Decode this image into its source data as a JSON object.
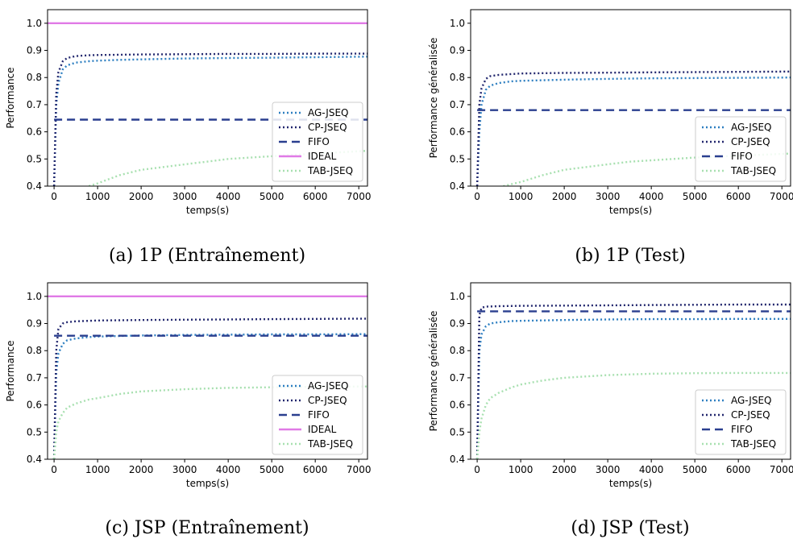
{
  "chart_data": [
    {
      "id": "a",
      "type": "line",
      "caption": "(a) 1P (Entraînement)",
      "xlabel": "temps(s)",
      "ylabel": "Performance",
      "xlim": [
        -150,
        7200
      ],
      "ylim": [
        0.4,
        1.05
      ],
      "xticks": [
        0,
        1000,
        2000,
        3000,
        4000,
        5000,
        6000,
        7000
      ],
      "yticks": [
        0.4,
        0.5,
        0.6,
        0.7,
        0.8,
        0.9,
        1.0
      ],
      "grid": false,
      "legend_position": "bottom-right",
      "series": [
        {
          "name": "AG-JSEQ",
          "color": "#2e7fc1",
          "style": "dotted",
          "x": [
            0,
            50,
            100,
            200,
            300,
            500,
            800,
            1000,
            1500,
            2000,
            3000,
            4000,
            5000,
            6000,
            7200
          ],
          "y": [
            0.4,
            0.7,
            0.78,
            0.83,
            0.845,
            0.855,
            0.86,
            0.862,
            0.865,
            0.867,
            0.87,
            0.872,
            0.873,
            0.875,
            0.877
          ]
        },
        {
          "name": "CP-JSEQ",
          "color": "#22276e",
          "style": "dotted",
          "x": [
            0,
            50,
            100,
            200,
            300,
            500,
            800,
            1000,
            2000,
            3000,
            4000,
            5000,
            6000,
            7200
          ],
          "y": [
            0.4,
            0.74,
            0.82,
            0.86,
            0.872,
            0.879,
            0.882,
            0.883,
            0.885,
            0.886,
            0.887,
            0.887,
            0.888,
            0.888
          ]
        },
        {
          "name": "FIFO",
          "color": "#2a3f8f",
          "style": "dashed",
          "x": [
            0,
            7200
          ],
          "y": [
            0.645,
            0.645
          ]
        },
        {
          "name": "IDEAL",
          "color": "#e07ae6",
          "style": "solid",
          "x": [
            -150,
            7200
          ],
          "y": [
            1.0,
            1.0
          ]
        },
        {
          "name": "TAB-JSEQ",
          "color": "#a8e0b0",
          "style": "dotted",
          "x": [
            800,
            1000,
            1500,
            2000,
            2500,
            3000,
            3500,
            4000,
            5000,
            6000,
            7200
          ],
          "y": [
            0.4,
            0.41,
            0.44,
            0.46,
            0.47,
            0.48,
            0.49,
            0.5,
            0.51,
            0.52,
            0.53
          ]
        }
      ]
    },
    {
      "id": "b",
      "type": "line",
      "caption": "(b) 1P (Test)",
      "xlabel": "temps(s)",
      "ylabel": "Performance généralisée",
      "xlim": [
        -150,
        7200
      ],
      "ylim": [
        0.4,
        1.05
      ],
      "xticks": [
        0,
        1000,
        2000,
        3000,
        4000,
        5000,
        6000,
        7000
      ],
      "yticks": [
        0.4,
        0.5,
        0.6,
        0.7,
        0.8,
        0.9,
        1.0
      ],
      "grid": false,
      "legend_position": "bottom-right",
      "series": [
        {
          "name": "AG-JSEQ",
          "color": "#2e7fc1",
          "style": "dotted",
          "x": [
            0,
            50,
            100,
            200,
            300,
            500,
            800,
            1000,
            2000,
            3000,
            4000,
            5000,
            6000,
            7200
          ],
          "y": [
            0.4,
            0.6,
            0.7,
            0.755,
            0.77,
            0.78,
            0.786,
            0.788,
            0.792,
            0.795,
            0.797,
            0.798,
            0.799,
            0.8
          ]
        },
        {
          "name": "CP-JSEQ",
          "color": "#22276e",
          "style": "dotted",
          "x": [
            0,
            50,
            100,
            200,
            300,
            500,
            800,
            1000,
            2000,
            3000,
            4000,
            5000,
            6000,
            7200
          ],
          "y": [
            0.4,
            0.7,
            0.76,
            0.795,
            0.805,
            0.81,
            0.813,
            0.815,
            0.817,
            0.818,
            0.819,
            0.82,
            0.821,
            0.822
          ]
        },
        {
          "name": "FIFO",
          "color": "#2a3f8f",
          "style": "dashed",
          "x": [
            0,
            7200
          ],
          "y": [
            0.68,
            0.68
          ]
        },
        {
          "name": "TAB-JSEQ",
          "color": "#a8e0b0",
          "style": "dotted",
          "x": [
            600,
            1000,
            1500,
            2000,
            2500,
            3000,
            3500,
            4000,
            5000,
            6000,
            7200
          ],
          "y": [
            0.4,
            0.415,
            0.44,
            0.46,
            0.47,
            0.48,
            0.49,
            0.495,
            0.505,
            0.512,
            0.52
          ]
        }
      ]
    },
    {
      "id": "c",
      "type": "line",
      "caption": "(c) JSP (Entraînement)",
      "xlabel": "temps(s)",
      "ylabel": "Performance",
      "xlim": [
        -150,
        7200
      ],
      "ylim": [
        0.4,
        1.05
      ],
      "xticks": [
        0,
        1000,
        2000,
        3000,
        4000,
        5000,
        6000,
        7000
      ],
      "yticks": [
        0.4,
        0.5,
        0.6,
        0.7,
        0.8,
        0.9,
        1.0
      ],
      "grid": false,
      "legend_position": "bottom-right",
      "series": [
        {
          "name": "AG-JSEQ",
          "color": "#2e7fc1",
          "style": "dotted",
          "x": [
            0,
            50,
            100,
            200,
            300,
            500,
            800,
            1000,
            2000,
            3000,
            4000,
            5000,
            6000,
            7200
          ],
          "y": [
            0.4,
            0.72,
            0.79,
            0.825,
            0.838,
            0.845,
            0.85,
            0.852,
            0.856,
            0.858,
            0.859,
            0.86,
            0.86,
            0.861
          ]
        },
        {
          "name": "CP-JSEQ",
          "color": "#22276e",
          "style": "dotted",
          "x": [
            0,
            50,
            100,
            200,
            300,
            500,
            800,
            1000,
            2000,
            3000,
            4000,
            5000,
            6000,
            7200
          ],
          "y": [
            0.4,
            0.8,
            0.88,
            0.9,
            0.905,
            0.908,
            0.91,
            0.911,
            0.913,
            0.914,
            0.915,
            0.916,
            0.917,
            0.918
          ]
        },
        {
          "name": "FIFO",
          "color": "#2a3f8f",
          "style": "dashed",
          "x": [
            0,
            7200
          ],
          "y": [
            0.855,
            0.855
          ]
        },
        {
          "name": "IDEAL",
          "color": "#e07ae6",
          "style": "solid",
          "x": [
            -150,
            7200
          ],
          "y": [
            1.0,
            1.0
          ]
        },
        {
          "name": "TAB-JSEQ",
          "color": "#a8e0b0",
          "style": "dotted",
          "x": [
            0,
            50,
            100,
            200,
            300,
            500,
            800,
            1000,
            1500,
            2000,
            3000,
            4000,
            5000,
            6000,
            7200
          ],
          "y": [
            0.4,
            0.5,
            0.54,
            0.57,
            0.59,
            0.605,
            0.62,
            0.625,
            0.64,
            0.65,
            0.658,
            0.663,
            0.665,
            0.667,
            0.668
          ]
        }
      ]
    },
    {
      "id": "d",
      "type": "line",
      "caption": "(d) JSP (Test)",
      "xlabel": "temps(s)",
      "ylabel": "Performance généralisée",
      "xlim": [
        -150,
        7200
      ],
      "ylim": [
        0.4,
        1.05
      ],
      "xticks": [
        0,
        1000,
        2000,
        3000,
        4000,
        5000,
        6000,
        7000
      ],
      "yticks": [
        0.4,
        0.5,
        0.6,
        0.7,
        0.8,
        0.9,
        1.0
      ],
      "grid": false,
      "legend_position": "bottom-right",
      "series": [
        {
          "name": "AG-JSEQ",
          "color": "#2e7fc1",
          "style": "dotted",
          "x": [
            0,
            50,
            100,
            200,
            300,
            500,
            800,
            1000,
            2000,
            3000,
            4000,
            5000,
            6000,
            7200
          ],
          "y": [
            0.4,
            0.8,
            0.86,
            0.89,
            0.9,
            0.905,
            0.909,
            0.91,
            0.913,
            0.915,
            0.916,
            0.916,
            0.917,
            0.917
          ]
        },
        {
          "name": "CP-JSEQ",
          "color": "#22276e",
          "style": "dotted",
          "x": [
            0,
            50,
            100,
            200,
            500,
            1000,
            2000,
            3000,
            4000,
            5000,
            6000,
            7200
          ],
          "y": [
            0.4,
            0.93,
            0.958,
            0.962,
            0.964,
            0.965,
            0.966,
            0.967,
            0.968,
            0.969,
            0.97,
            0.97
          ]
        },
        {
          "name": "FIFO",
          "color": "#2a3f8f",
          "style": "dashed",
          "x": [
            0,
            7200
          ],
          "y": [
            0.945,
            0.945
          ]
        },
        {
          "name": "TAB-JSEQ",
          "color": "#a8e0b0",
          "style": "dotted",
          "x": [
            0,
            50,
            100,
            200,
            300,
            500,
            800,
            1000,
            1500,
            2000,
            3000,
            4000,
            5000,
            6000,
            7200
          ],
          "y": [
            0.4,
            0.5,
            0.55,
            0.6,
            0.625,
            0.645,
            0.665,
            0.675,
            0.69,
            0.7,
            0.71,
            0.715,
            0.717,
            0.718,
            0.718
          ]
        }
      ]
    }
  ]
}
